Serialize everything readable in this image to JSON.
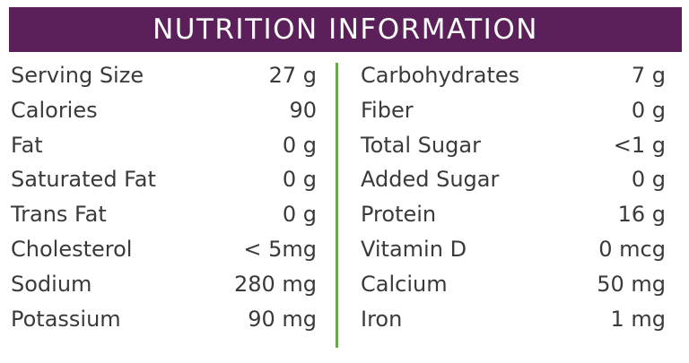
{
  "header": {
    "title": "NUTRITION INFORMATION"
  },
  "left": [
    [
      "Serving Size",
      "27 g"
    ],
    [
      "Calories",
      "90"
    ],
    [
      "Fat",
      "0 g"
    ],
    [
      "Saturated Fat",
      "0 g"
    ],
    [
      "Trans Fat",
      "0 g"
    ],
    [
      "Cholesterol",
      "< 5mg"
    ],
    [
      "Sodium",
      "280 mg"
    ],
    [
      "Potassium",
      "90 mg"
    ]
  ],
  "right": [
    [
      "Carbohydrates",
      "7 g"
    ],
    [
      "Fiber",
      "0 g"
    ],
    [
      "Total Sugar",
      "<1 g"
    ],
    [
      "Added Sugar",
      "0 g"
    ],
    [
      "Protein",
      "16 g"
    ],
    [
      "Vitamin D",
      "0 mcg"
    ],
    [
      "Calcium",
      "50 mg"
    ],
    [
      "Iron",
      "1 mg"
    ]
  ]
}
